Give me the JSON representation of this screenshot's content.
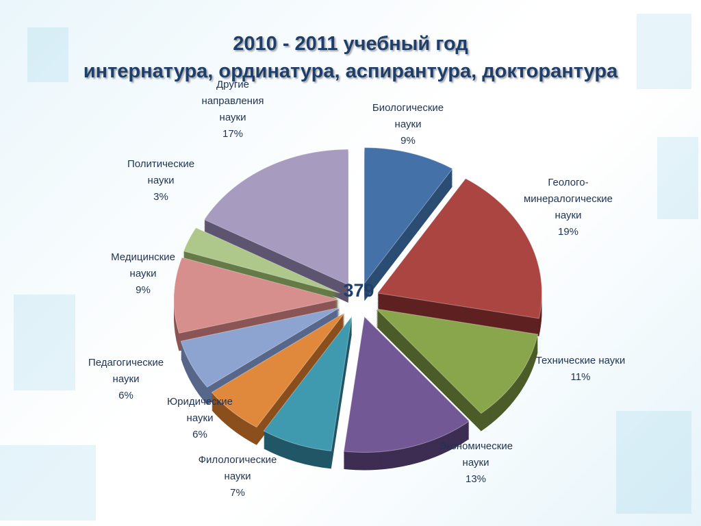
{
  "title_line1": "2010 - 2011 учебный год",
  "title_line2": "интернатура, ординатура, аспирантура, докторантура",
  "chart_data": {
    "type": "pie",
    "total": "379",
    "slices": [
      {
        "lines": [
          "Биологические",
          "науки",
          "9%"
        ],
        "value": 9,
        "color": "#4472a8",
        "dark": "#2b4c73"
      },
      {
        "lines": [
          "Геолого-",
          "минералогические",
          "науки",
          "19%"
        ],
        "value": 19,
        "color": "#aa4542",
        "dark": "#5e2120"
      },
      {
        "lines": [
          "Технические науки",
          "11%"
        ],
        "value": 11,
        "color": "#8aa64d",
        "dark": "#4b5c28"
      },
      {
        "lines": [
          "Экономические",
          "науки",
          "13%"
        ],
        "value": 13,
        "color": "#735896",
        "dark": "#3d2d52"
      },
      {
        "lines": [
          "Филологические",
          "науки",
          "7%"
        ],
        "value": 7,
        "color": "#3f9ab0",
        "dark": "#215666"
      },
      {
        "lines": [
          "Юридические",
          "науки",
          "6%"
        ],
        "value": 6,
        "color": "#e0893d",
        "dark": "#8a4f1c"
      },
      {
        "lines": [
          "Педагогические",
          "науки",
          "6%"
        ],
        "value": 6,
        "color": "#8ea4d0",
        "dark": "#56678a"
      },
      {
        "lines": [
          "Медицинские",
          "науки",
          "9%"
        ],
        "value": 9,
        "color": "#d68f8d",
        "dark": "#8a5554"
      },
      {
        "lines": [
          "Политические",
          "науки",
          "3%"
        ],
        "value": 3,
        "color": "#aec78a",
        "dark": "#667a48"
      },
      {
        "lines": [
          "Другие",
          "направления",
          "науки",
          "17%"
        ],
        "value": 17,
        "color": "#a79bc0",
        "dark": "#5d5470"
      }
    ]
  }
}
